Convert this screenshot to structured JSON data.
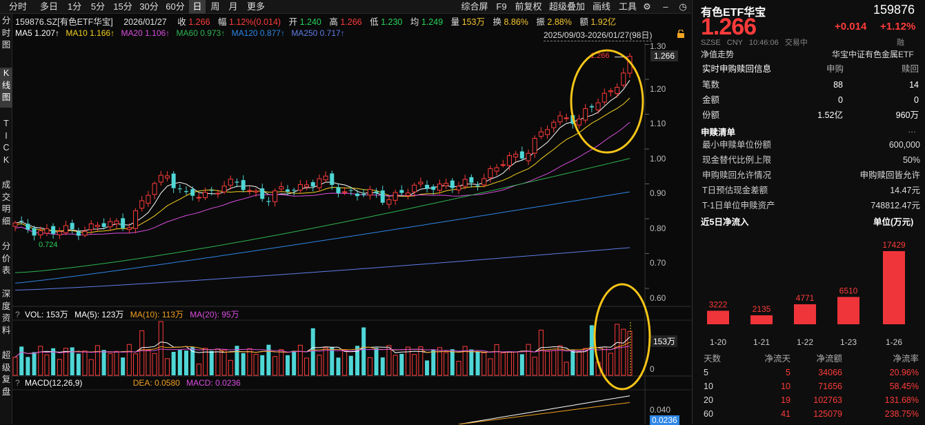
{
  "toolbar": {
    "left_tabs": [
      "分时",
      "多日",
      "1分",
      "5分",
      "15分",
      "30分",
      "60分",
      "日",
      "周",
      "月",
      "更多"
    ],
    "selected": "日",
    "right_tabs": [
      "综合屏",
      "F9",
      "前复权",
      "超级叠加",
      "画线",
      "工具"
    ]
  },
  "vnav": [
    "分\n时\n图",
    "K\n线\n图",
    "T\nI\nC\nK",
    "成\n交\n明\n细",
    "分\n价\n表",
    "深\n度\n资\n料",
    "超\n级\n复\n盘"
  ],
  "info_line": {
    "code_name": "159876.SZ[有色ETF华宝]",
    "date": "2026/01/27",
    "close_label": "收",
    "close": "1.266",
    "change_label": "幅",
    "change": "1.12%(0.014)",
    "open_label": "开",
    "open": "1.240",
    "high_label": "高",
    "high": "1.266",
    "low_label": "低",
    "low": "1.230",
    "avg_label": "均",
    "avg": "1.249",
    "vol_label": "量",
    "vol": "153万",
    "turnover_label": "换",
    "turnover": "8.86%",
    "amplitude_label": "振",
    "amplitude": "2.88%",
    "amount_label": "额",
    "amount": "1.92亿"
  },
  "ma_line": {
    "ma5": "MA5 1.207↑",
    "ma10": "MA10 1.166↑",
    "ma20": "MA20 1.106↑",
    "ma60": "MA60 0.973↑",
    "ma120": "MA120 0.877↑",
    "ma250": "MA250 0.717↑",
    "range": "2025/09/03-2026/01/27(98日)"
  },
  "ma_colors": {
    "ma5": "#ffffff",
    "ma10": "#f4d21f",
    "ma20": "#d94ee0",
    "ma60": "#2fb552",
    "ma120": "#2e86e6",
    "ma250": "#5f7de8"
  },
  "price_axis": [
    "1.30",
    "1.20",
    "1.10",
    "1.00",
    "0.90",
    "0.80",
    "0.70",
    "0.60"
  ],
  "price_current": "1.266",
  "price_high_label": "1.266",
  "price_low_label": "0.724",
  "volume_line": {
    "vol": "VOL: 153万",
    "ma5": "MA(5): 123万",
    "ma10": "MA(10): 113万",
    "ma20": "MA(20): 95万"
  },
  "volume_axis": {
    "current": "153万",
    "zero": "0"
  },
  "macd_line": {
    "title": "MACD(12,26,9)",
    "dea": "DEA: 0.0580",
    "macd": "MACD: 0.0236"
  },
  "macd_axis": {
    "top": "0.040",
    "current": "0.0236"
  },
  "header": {
    "name": "有色ETF华宝",
    "code": "159876",
    "price": "1.266",
    "change": "+0.014",
    "change_pct": "+1.12%",
    "meta": [
      "SZSE",
      "CNY",
      "10:46:06",
      "交易中"
    ],
    "nav_label": "净值走势",
    "tracking": "华宝中证有色金属ETF",
    "margin_tag": "融"
  },
  "realtime_box": {
    "title": "实时申购赎回信息",
    "col1": "申购",
    "col2": "赎回",
    "rows": [
      {
        "label": "笔数",
        "sub": "88",
        "red": "14"
      },
      {
        "label": "金额",
        "sub": "0",
        "red": "0"
      },
      {
        "label": "份额",
        "sub": "1.52亿",
        "red": "960万"
      }
    ]
  },
  "redeem_list": {
    "title": "申赎清单",
    "rows": [
      {
        "label": "最小申赎单位份额",
        "value": "600,000"
      },
      {
        "label": "现金替代比例上限",
        "value": "50%"
      },
      {
        "label": "申购赎回允许情况",
        "value": "申购赎回皆允许"
      },
      {
        "label": "T日预估现金差额",
        "value": "14.47元"
      },
      {
        "label": "T-1日单位申赎资产",
        "value": "748812.47元"
      }
    ]
  },
  "inflow": {
    "title": "近5日净流入",
    "unit": "单位(万元)",
    "bars": [
      {
        "date": "1-20",
        "value": 3222
      },
      {
        "date": "1-21",
        "value": 2135
      },
      {
        "date": "1-22",
        "value": 4771
      },
      {
        "date": "1-23",
        "value": 6510
      },
      {
        "date": "1-26",
        "value": 17429
      }
    ]
  },
  "inflow_table": {
    "headers": [
      "天数",
      "净流天",
      "净流额",
      "净流率"
    ],
    "rows": [
      [
        "5",
        "5",
        "34066",
        "20.96%"
      ],
      [
        "10",
        "10",
        "71656",
        "58.45%"
      ],
      [
        "20",
        "19",
        "102763",
        "131.68%"
      ],
      [
        "60",
        "41",
        "125079",
        "238.75%"
      ]
    ]
  }
}
